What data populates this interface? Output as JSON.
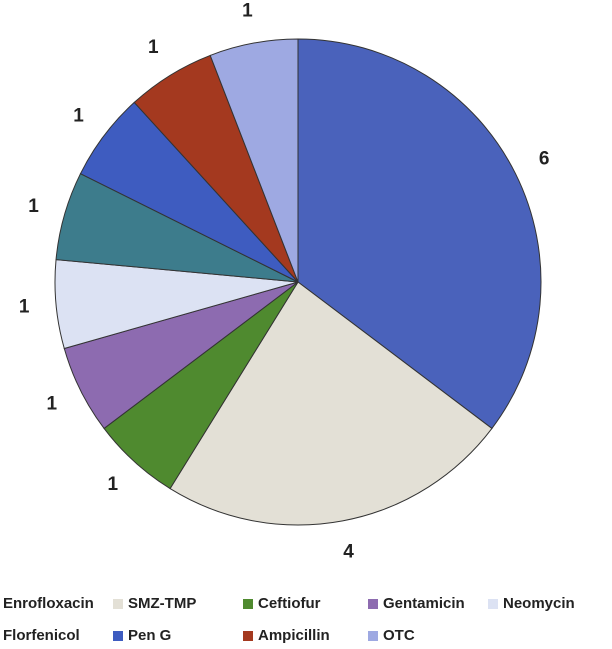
{
  "chart_data": {
    "type": "pie",
    "categories": [
      "Enrofloxacin",
      "SMZ-TMP",
      "Ceftiofur",
      "Gentamicin",
      "Neomycin",
      "Florfenicol",
      "Pen G",
      "Ampicillin",
      "OTC"
    ],
    "values": [
      6,
      4,
      1,
      1,
      1,
      1,
      1,
      1,
      1
    ],
    "colors": [
      "#4a62bb",
      "#e3e0d6",
      "#4f8a2f",
      "#8d6bb0",
      "#dce2f3",
      "#3d7c8c",
      "#3e5cc0",
      "#a4391f",
      "#9ea9e2"
    ],
    "legend": "bottom"
  }
}
